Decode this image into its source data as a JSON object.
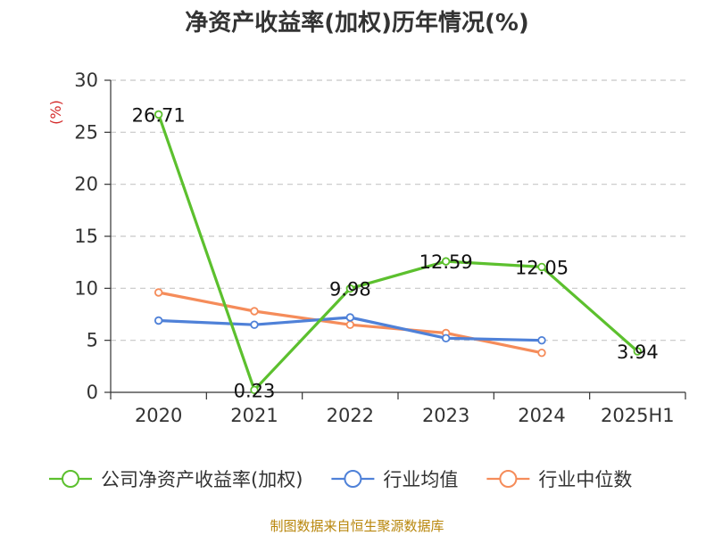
{
  "chart_data": {
    "type": "line",
    "title": "净资产收益率(加权)历年情况(%)",
    "y_unit": "(%)",
    "categories": [
      "2020",
      "2021",
      "2022",
      "2023",
      "2024",
      "2025H1"
    ],
    "ylim": [
      0,
      30
    ],
    "yticks": [
      0,
      5,
      10,
      15,
      20,
      25,
      30
    ],
    "grid": true,
    "legend_position": "bottom",
    "series": [
      {
        "name": "公司净资产收益率(加权)",
        "color": "#5cc02e",
        "values": [
          26.71,
          0.23,
          9.98,
          12.59,
          12.05,
          3.94
        ],
        "labels": [
          "26.71",
          "0.23",
          "9.98",
          "12.59",
          "12.05",
          "3.94"
        ]
      },
      {
        "name": "行业均值",
        "color": "#4f81d8",
        "values": [
          6.9,
          6.5,
          7.2,
          5.2,
          5.0,
          null
        ]
      },
      {
        "name": "行业中位数",
        "color": "#f58c5a",
        "values": [
          9.6,
          7.8,
          6.5,
          5.7,
          3.8,
          null
        ]
      }
    ]
  },
  "source_note": "制图数据来自恒生聚源数据库"
}
